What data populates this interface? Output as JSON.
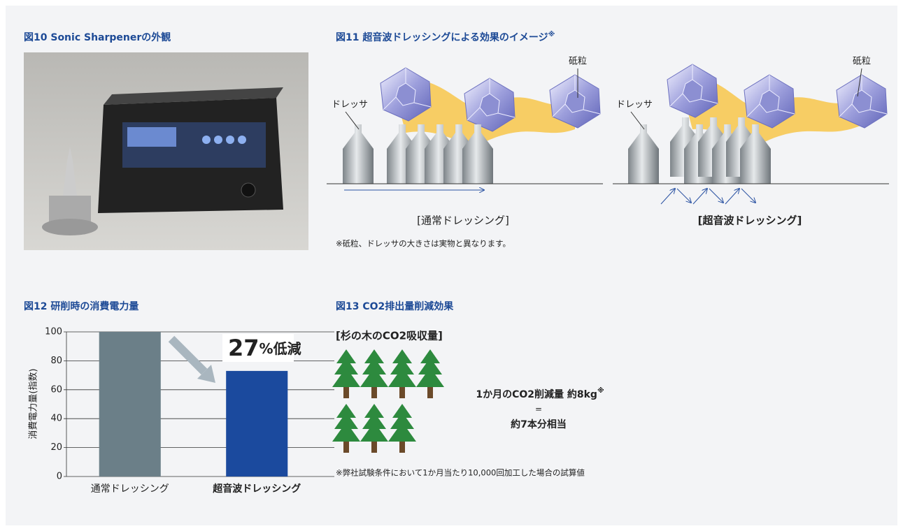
{
  "fig10": {
    "title": "図10 Sonic Sharpenerの外観"
  },
  "fig11": {
    "title": "図11 超音波ドレッシングによる効果のイメージ",
    "title_mark": "※",
    "normal": {
      "grain_label": "砥粒",
      "dresser_label": "ドレッサ",
      "caption": "[通常ドレッシング]"
    },
    "ultrasonic": {
      "grain_label": "砥粒",
      "dresser_label": "ドレッサ",
      "caption": "[超音波ドレッシング]"
    },
    "note": "※砥粒、ドレッサの大きさは実物と異なります。"
  },
  "chart_data": {
    "type": "bar",
    "title": "図12 研削時の消費電力量",
    "y_label": "消費電力量(指数)",
    "categories": [
      "通常ドレッシング",
      "超音波ドレッシング"
    ],
    "values": [
      100,
      73
    ],
    "colors": [
      "#6b7f88",
      "#1b4a9e"
    ],
    "ylim": [
      0,
      100
    ],
    "yticks": [
      0,
      20,
      40,
      60,
      80,
      100
    ],
    "grid": true,
    "annotation_number": "27",
    "annotation_unit": "%低減"
  },
  "fig13": {
    "title": "図13 CO2排出量削減効果",
    "subtitle": "[杉の木のCO2吸収量]",
    "line1": "1か月のCO2削減量 約8kg",
    "line1_mark": "※",
    "equals": "=",
    "line2": "約7本分相当",
    "note": "※弊社試験条件において1か月当たり10,000回加工した場合の試算値"
  }
}
